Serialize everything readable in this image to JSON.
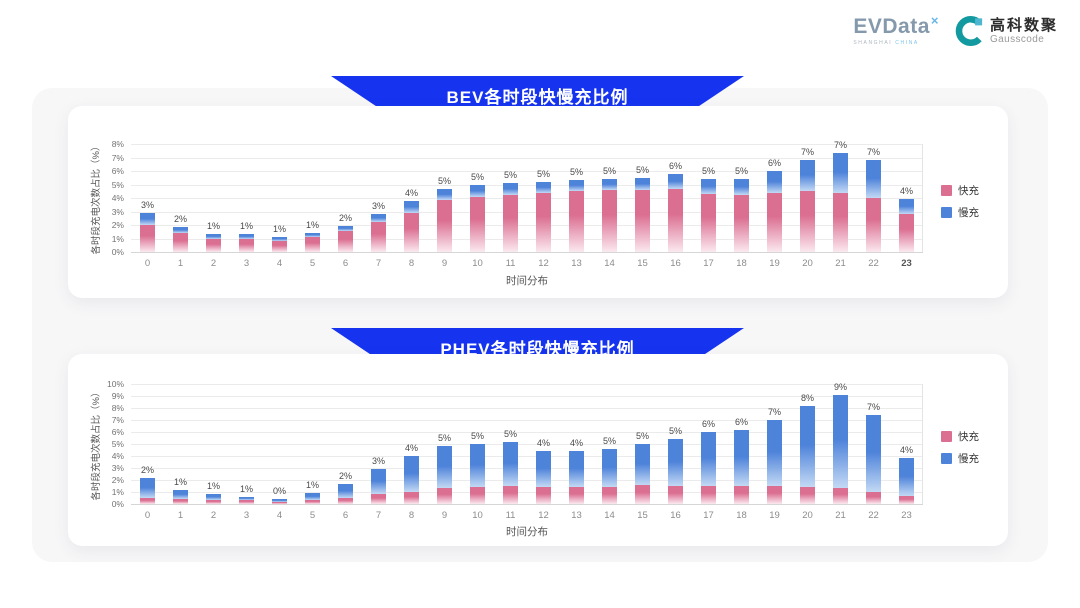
{
  "header": {
    "evdata": {
      "text": "EVData",
      "sup": "×",
      "subtext_left": "SHANGHAI",
      "subtext_right": "CHINA"
    },
    "gausscode": {
      "name_cn": "高科数聚",
      "name_en": "Gausscode"
    }
  },
  "colors": {
    "banner_blue": "#1634f0",
    "fast_top": "#db6f92",
    "fast_fade": "#fbe9ef",
    "slow_top": "#4e83da",
    "slow_fade": "#c3d9f4",
    "grid": "#ebebeb",
    "panel_bg": "#f7f7f8"
  },
  "chart_data": [
    {
      "type": "bar",
      "stacked": true,
      "id": "bev",
      "title": "BEV各时段快慢充比例",
      "xlabel": "时间分布",
      "ylabel": "各时段充电次数占比（%）",
      "ylim": [
        0,
        8
      ],
      "yticks": [
        "0%",
        "1%",
        "2%",
        "3%",
        "4%",
        "5%",
        "6%",
        "7%",
        "8%"
      ],
      "grid": true,
      "legend_position": "right",
      "categories": [
        "0",
        "1",
        "2",
        "3",
        "4",
        "5",
        "6",
        "7",
        "8",
        "9",
        "10",
        "11",
        "12",
        "13",
        "14",
        "15",
        "16",
        "17",
        "18",
        "19",
        "20",
        "21",
        "22",
        "23"
      ],
      "bar_labels": [
        "3%",
        "2%",
        "1%",
        "1%",
        "1%",
        "1%",
        "2%",
        "3%",
        "4%",
        "5%",
        "5%",
        "5%",
        "5%",
        "5%",
        "5%",
        "5%",
        "6%",
        "5%",
        "5%",
        "6%",
        "7%",
        "7%",
        "7%",
        "4%"
      ],
      "series": [
        {
          "name": "快充",
          "color": "#db6f92",
          "fade": "#fbe9ef",
          "values": [
            2.0,
            1.4,
            1.0,
            1.0,
            0.85,
            1.1,
            1.55,
            2.2,
            2.9,
            3.85,
            4.1,
            4.2,
            4.35,
            4.5,
            4.6,
            4.6,
            4.7,
            4.3,
            4.2,
            4.4,
            4.5,
            4.4,
            4.0,
            2.8
          ]
        },
        {
          "name": "慢充",
          "color": "#4e83da",
          "fade": "#c3d9f4",
          "values": [
            0.9,
            0.45,
            0.3,
            0.3,
            0.25,
            0.3,
            0.4,
            0.6,
            0.85,
            0.85,
            0.9,
            0.9,
            0.85,
            0.8,
            0.8,
            0.85,
            1.05,
            1.1,
            1.2,
            1.6,
            2.3,
            2.9,
            2.8,
            1.1
          ]
        }
      ]
    },
    {
      "type": "bar",
      "stacked": true,
      "id": "phev",
      "title": "PHEV各时段快慢充比例",
      "xlabel": "时间分布",
      "ylabel": "各时段充电次数占比（%）",
      "ylim": [
        0,
        10
      ],
      "yticks": [
        "0%",
        "1%",
        "2%",
        "3%",
        "4%",
        "5%",
        "6%",
        "7%",
        "8%",
        "9%",
        "10%"
      ],
      "grid": true,
      "legend_position": "right",
      "categories": [
        "0",
        "1",
        "2",
        "3",
        "4",
        "5",
        "6",
        "7",
        "8",
        "9",
        "10",
        "11",
        "12",
        "13",
        "14",
        "15",
        "16",
        "17",
        "18",
        "19",
        "20",
        "21",
        "22",
        "23"
      ],
      "bar_labels": [
        "2%",
        "1%",
        "1%",
        "1%",
        "0%",
        "1%",
        "2%",
        "3%",
        "4%",
        "5%",
        "5%",
        "5%",
        "4%",
        "4%",
        "5%",
        "5%",
        "5%",
        "6%",
        "6%",
        "7%",
        "8%",
        "9%",
        "7%",
        "4%"
      ],
      "series": [
        {
          "name": "快充",
          "color": "#db6f92",
          "fade": "#fbe9ef",
          "values": [
            0.5,
            0.45,
            0.35,
            0.3,
            0.2,
            0.3,
            0.5,
            0.8,
            1.0,
            1.3,
            1.4,
            1.5,
            1.4,
            1.4,
            1.4,
            1.6,
            1.5,
            1.5,
            1.5,
            1.5,
            1.4,
            1.3,
            1.0,
            0.7
          ]
        },
        {
          "name": "慢充",
          "color": "#4e83da",
          "fade": "#c3d9f4",
          "values": [
            1.7,
            0.75,
            0.45,
            0.3,
            0.25,
            0.6,
            1.2,
            2.1,
            3.0,
            3.5,
            3.6,
            3.7,
            3.0,
            3.05,
            3.2,
            3.4,
            3.9,
            4.5,
            4.7,
            5.5,
            6.8,
            7.8,
            6.4,
            3.1
          ]
        }
      ]
    }
  ]
}
